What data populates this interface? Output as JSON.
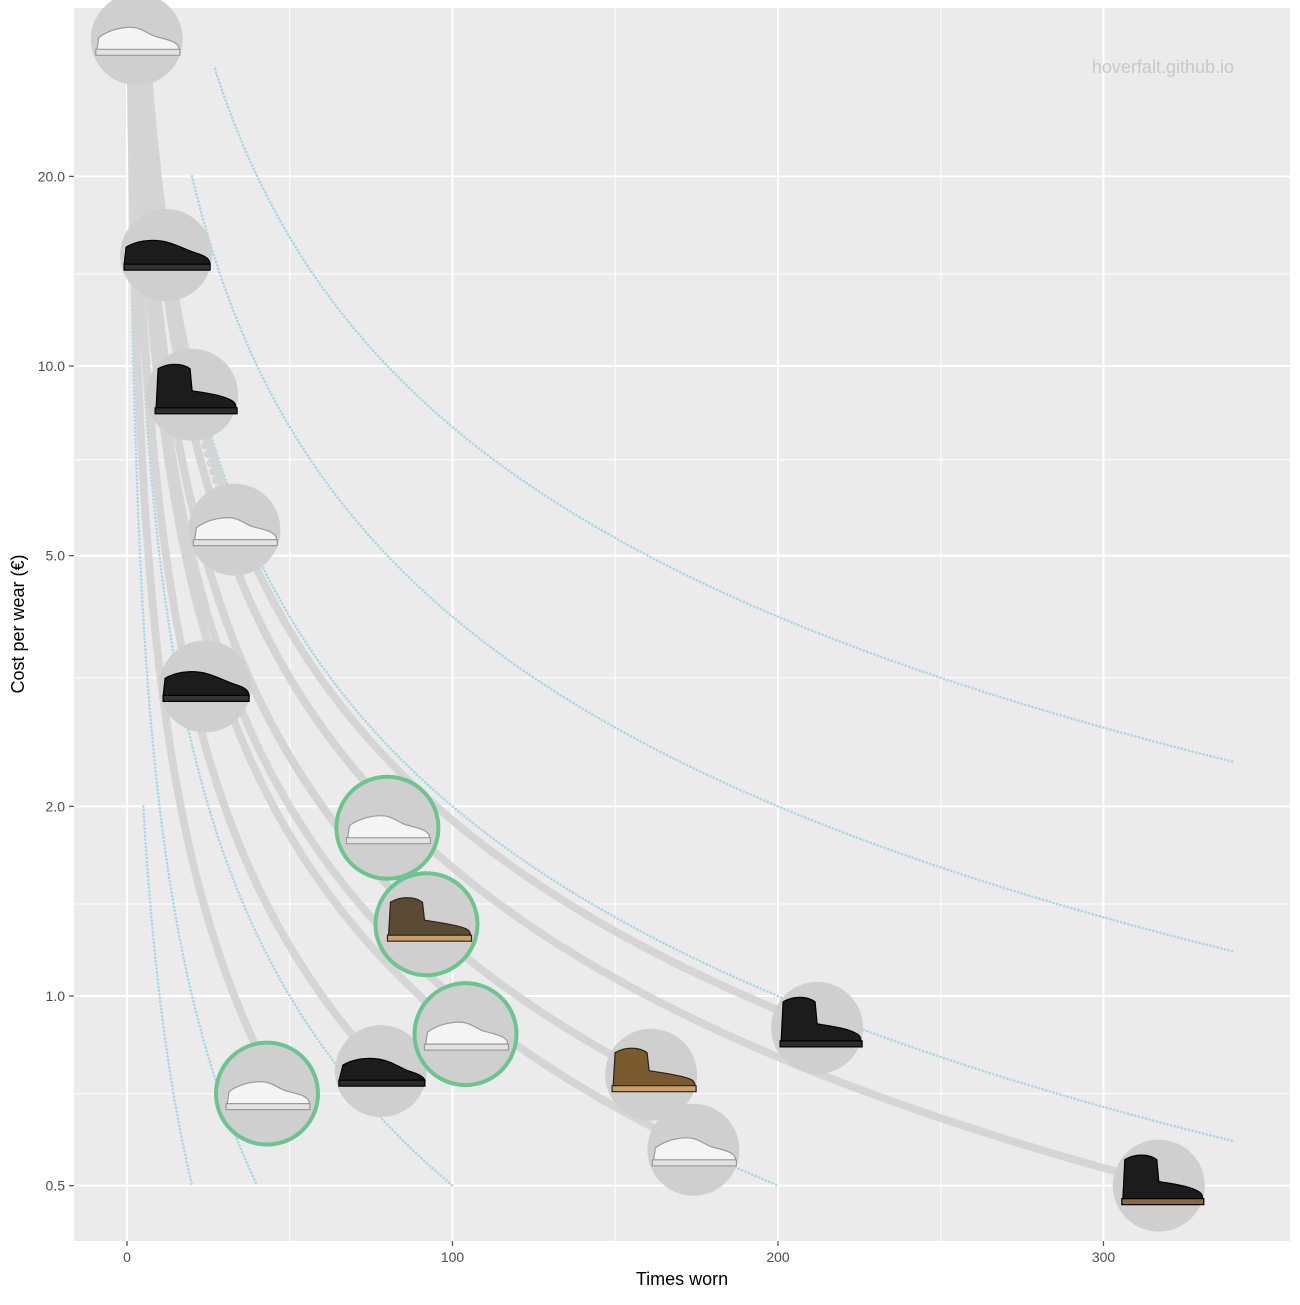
{
  "chart_data": {
    "type": "scatter",
    "xlabel": "Times worn",
    "ylabel": "Cost per wear (€)",
    "xlim": [
      -15,
      355
    ],
    "ylim": [
      0.42,
      42
    ],
    "y_scale": "log",
    "x_ticks": [
      0,
      100,
      200,
      300
    ],
    "x_tick_labels": [
      "0",
      "100",
      "200",
      "300"
    ],
    "y_ticks": [
      0.5,
      1.0,
      2.0,
      5.0,
      10.0,
      20.0
    ],
    "y_tick_labels": [
      "0.5",
      "1.0",
      "2.0",
      "5.0",
      "10.0",
      "20.0"
    ],
    "grid": true,
    "watermark": "hoverfalt.github.io",
    "reference_curves": [
      {
        "price": 10,
        "x_from": 5,
        "x_to": 20
      },
      {
        "price": 20,
        "x_from": 1,
        "x_to": 40
      },
      {
        "price": 50,
        "x_from": 2,
        "x_to": 100
      },
      {
        "price": 100,
        "x_from": 5,
        "x_to": 200
      },
      {
        "price": 200,
        "x_from": 10,
        "x_to": 340
      },
      {
        "price": 400,
        "x_from": 20,
        "x_to": 340
      },
      {
        "price": 800,
        "x_from": 27,
        "x_to": 340
      }
    ],
    "series": [
      {
        "shoe": "white-sneaker-hh",
        "icon": "white-low-sneaker-icon",
        "price": 100,
        "x": 3,
        "y": 33,
        "current": false
      },
      {
        "shoe": "black-derby",
        "icon": "black-derby-shoe-icon",
        "price": 180,
        "x": 12,
        "y": 15,
        "current": false
      },
      {
        "shoe": "black-ankle-boot",
        "icon": "black-ankle-boot-icon",
        "price": 180,
        "x": 20,
        "y": 9,
        "current": false
      },
      {
        "shoe": "white-leather-sneaker",
        "icon": "white-leather-sneaker-icon",
        "price": 180,
        "x": 33,
        "y": 5.5,
        "current": false
      },
      {
        "shoe": "black-dress-boot",
        "icon": "black-dress-boot-icon",
        "price": 90,
        "x": 24,
        "y": 3.1,
        "current": false
      },
      {
        "shoe": "white-sneaker-a",
        "icon": "white-sneaker-icon",
        "price": 33,
        "x": 43,
        "y": 0.7,
        "current": true
      },
      {
        "shoe": "black-running-shoe",
        "icon": "black-running-shoe-icon",
        "price": 60,
        "x": 78,
        "y": 0.76,
        "current": false
      },
      {
        "shoe": "white-sneaker-b",
        "icon": "white-sneaker-icon",
        "price": 160,
        "x": 80,
        "y": 1.85,
        "current": true
      },
      {
        "shoe": "brown-leather-boot",
        "icon": "brown-leather-boot-icon",
        "price": 120,
        "x": 92,
        "y": 1.3,
        "current": true
      },
      {
        "shoe": "white-sneaker-c",
        "icon": "white-star-sneaker-icon",
        "price": 90,
        "x": 104,
        "y": 0.87,
        "current": true
      },
      {
        "shoe": "tan-chukka-boot",
        "icon": "tan-chukka-boot-icon",
        "price": 120,
        "x": 161,
        "y": 0.75,
        "current": false
      },
      {
        "shoe": "white-sneaker-d",
        "icon": "white-sneaker-icon",
        "price": 100,
        "x": 174,
        "y": 0.57,
        "current": false
      },
      {
        "shoe": "black-winter-boot",
        "icon": "black-winter-boot-icon",
        "price": 190,
        "x": 212,
        "y": 0.89,
        "current": false
      },
      {
        "shoe": "black-lace-boot",
        "icon": "black-lace-boot-icon",
        "price": 160,
        "x": 317,
        "y": 0.5,
        "current": false
      }
    ],
    "colors": {
      "panel": "#ebebeb",
      "grid": "#ffffff",
      "reference": "#a6d8e8",
      "trail": "#d4d4d4",
      "badge": "#cfcfcf",
      "current_ring": "#6cc48e",
      "tick": "#4d4d4d"
    }
  }
}
